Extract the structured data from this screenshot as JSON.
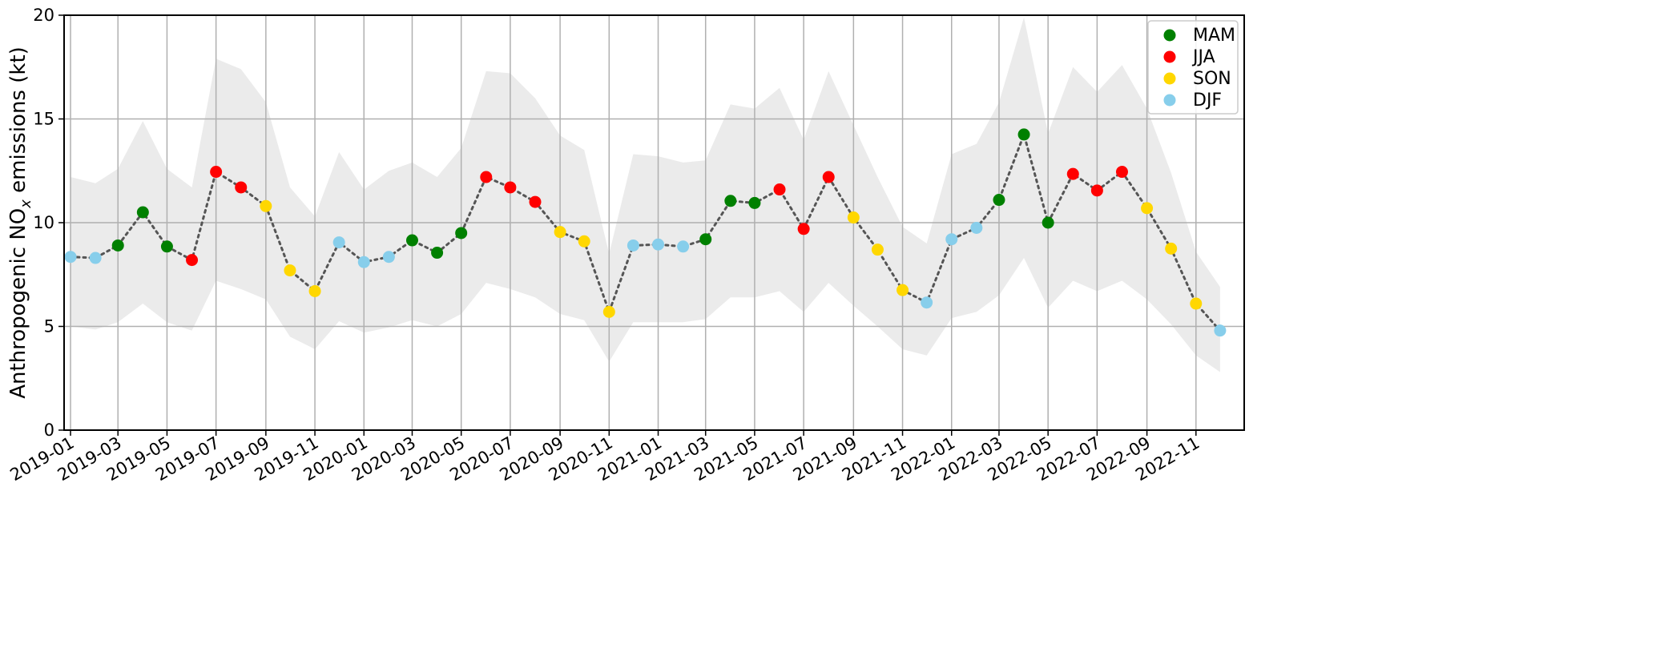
{
  "chart_data": {
    "type": "scatter",
    "ylabel": "Anthropogenic NOₓ emissions (kt)",
    "ylabel_parts": [
      "Anthropogenic NO",
      "x",
      " emissions (kt)"
    ],
    "ylim": [
      0,
      20
    ],
    "yticks": [
      0,
      5,
      10,
      15,
      20
    ],
    "xlim": [
      "2018-12-24",
      "2022-12-31"
    ],
    "xticks": [
      "2019-01",
      "2019-03",
      "2019-05",
      "2019-07",
      "2019-09",
      "2019-11",
      "2020-01",
      "2020-03",
      "2020-05",
      "2020-07",
      "2020-09",
      "2020-11",
      "2021-01",
      "2021-03",
      "2021-05",
      "2021-07",
      "2021-09",
      "2021-11",
      "2022-01",
      "2022-03",
      "2022-05",
      "2022-07",
      "2022-09",
      "2022-11"
    ],
    "grid": true,
    "legend_position": "top-right",
    "connector": "dotted",
    "x": [
      "2019-01",
      "2019-02",
      "2019-03",
      "2019-04",
      "2019-05",
      "2019-06",
      "2019-07",
      "2019-08",
      "2019-09",
      "2019-10",
      "2019-11",
      "2019-12",
      "2020-01",
      "2020-02",
      "2020-03",
      "2020-04",
      "2020-05",
      "2020-06",
      "2020-07",
      "2020-08",
      "2020-09",
      "2020-10",
      "2020-11",
      "2020-12",
      "2021-01",
      "2021-02",
      "2021-03",
      "2021-04",
      "2021-05",
      "2021-06",
      "2021-07",
      "2021-08",
      "2021-09",
      "2021-10",
      "2021-11",
      "2021-12",
      "2022-01",
      "2022-02",
      "2022-03",
      "2022-04",
      "2022-05",
      "2022-06",
      "2022-07",
      "2022-08",
      "2022-09",
      "2022-10",
      "2022-11",
      "2022-12"
    ],
    "values": [
      8.35,
      8.3,
      8.9,
      10.5,
      8.85,
      8.2,
      12.45,
      11.7,
      10.8,
      7.7,
      6.7,
      9.05,
      8.1,
      8.35,
      9.15,
      8.55,
      9.5,
      12.2,
      11.7,
      11.0,
      9.55,
      9.1,
      5.7,
      8.9,
      8.95,
      8.85,
      9.2,
      11.05,
      10.95,
      11.6,
      9.7,
      12.2,
      10.25,
      8.7,
      6.75,
      6.15,
      9.2,
      9.75,
      11.1,
      14.25,
      10.0,
      12.35,
      11.55,
      12.45,
      10.7,
      8.75,
      6.1,
      4.8
    ],
    "season": [
      "DJF",
      "DJF",
      "MAM",
      "MAM",
      "MAM",
      "JJA",
      "JJA",
      "JJA",
      "SON",
      "SON",
      "SON",
      "DJF",
      "DJF",
      "DJF",
      "MAM",
      "MAM",
      "MAM",
      "JJA",
      "JJA",
      "JJA",
      "SON",
      "SON",
      "SON",
      "DJF",
      "DJF",
      "DJF",
      "MAM",
      "MAM",
      "MAM",
      "JJA",
      "JJA",
      "JJA",
      "SON",
      "SON",
      "SON",
      "DJF",
      "DJF",
      "DJF",
      "MAM",
      "MAM",
      "MAM",
      "JJA",
      "JJA",
      "JJA",
      "SON",
      "SON",
      "SON",
      "DJF"
    ],
    "band_upper": [
      12.2,
      11.9,
      12.6,
      14.9,
      12.6,
      11.7,
      17.9,
      17.4,
      15.8,
      11.7,
      10.3,
      13.4,
      11.6,
      12.5,
      12.9,
      12.2,
      13.6,
      17.3,
      17.2,
      16.0,
      14.2,
      13.5,
      8.5,
      13.3,
      13.2,
      12.9,
      13.0,
      15.7,
      15.5,
      16.5,
      14.0,
      17.3,
      14.7,
      12.2,
      9.8,
      9.0,
      13.3,
      13.8,
      15.8,
      19.9,
      14.3,
      17.5,
      16.3,
      17.6,
      15.5,
      12.4,
      8.6,
      6.9
    ],
    "band_lower": [
      5.0,
      4.85,
      5.2,
      6.1,
      5.2,
      4.8,
      7.2,
      6.8,
      6.3,
      4.5,
      3.9,
      5.25,
      4.7,
      4.95,
      5.3,
      5.0,
      5.6,
      7.1,
      6.8,
      6.4,
      5.6,
      5.3,
      3.3,
      5.2,
      5.2,
      5.2,
      5.35,
      6.4,
      6.4,
      6.7,
      5.7,
      7.1,
      6.0,
      5.0,
      3.9,
      3.6,
      5.4,
      5.7,
      6.5,
      8.3,
      5.9,
      7.2,
      6.7,
      7.2,
      6.3,
      5.1,
      3.6,
      2.8
    ],
    "series": [
      {
        "name": "MAM",
        "color": "#008000"
      },
      {
        "name": "JJA",
        "color": "#ff0000"
      },
      {
        "name": "SON",
        "color": "#ffd700"
      },
      {
        "name": "DJF",
        "color": "#87ceeb"
      }
    ],
    "colors": {
      "band": "#ebebeb",
      "grid": "#b0b0b0",
      "connector": "#555555"
    }
  }
}
